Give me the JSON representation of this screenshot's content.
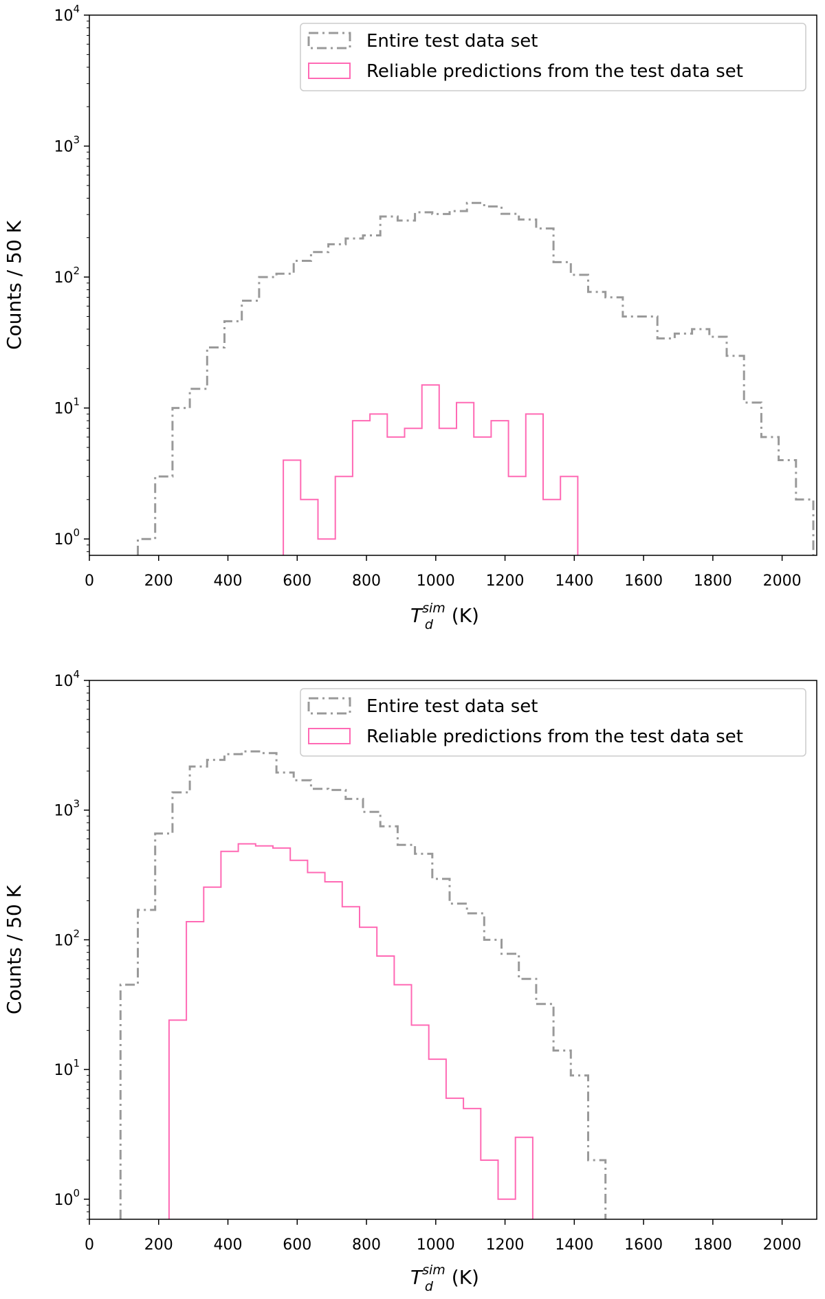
{
  "colors": {
    "entire": "#999999",
    "reliable": "#ff69b4",
    "axis": "#000000",
    "legend_border": "#cccccc"
  },
  "chart_data": [
    {
      "type": "histogram",
      "title": "",
      "xlabel": {
        "main": "T",
        "sub": "d",
        "sup": "sim",
        "unit": " (K)"
      },
      "ylabel": "Counts / 50 K",
      "xlim": [
        0,
        2100
      ],
      "ylim": [
        0.75,
        10000
      ],
      "yscale": "log",
      "xticks": [
        0,
        200,
        400,
        600,
        800,
        1000,
        1200,
        1400,
        1600,
        1800,
        2000
      ],
      "xtick_labels": [
        "0",
        "200",
        "400",
        "600",
        "800",
        "1000",
        "1200",
        "1400",
        "1600",
        "1800",
        "2000"
      ],
      "yticks": [
        {
          "value": 1,
          "base": "10",
          "exp": "0"
        },
        {
          "value": 10,
          "base": "10",
          "exp": "1"
        },
        {
          "value": 100,
          "base": "10",
          "exp": "2"
        },
        {
          "value": 1000,
          "base": "10",
          "exp": "3"
        },
        {
          "value": 10000,
          "base": "10",
          "exp": "4"
        }
      ],
      "legend": {
        "position": "top-right"
      },
      "series": [
        {
          "name": "Entire test data set",
          "style": "dashdot",
          "color": "#999999",
          "edges": [
            140,
            190,
            240,
            290,
            340,
            390,
            440,
            490,
            540,
            590,
            640,
            690,
            740,
            790,
            840,
            890,
            940,
            990,
            1040,
            1090,
            1140,
            1190,
            1240,
            1290,
            1340,
            1390,
            1440,
            1490,
            1540,
            1590,
            1640,
            1690,
            1740,
            1790,
            1840,
            1890,
            1940,
            1990,
            2040,
            2090
          ],
          "values": [
            1,
            3,
            10,
            14,
            29,
            46,
            66,
            100,
            106,
            133,
            155,
            178,
            197,
            208,
            290,
            270,
            312,
            303,
            319,
            368,
            346,
            304,
            275,
            235,
            130,
            104,
            77,
            70,
            50,
            50,
            34,
            37,
            40,
            35,
            25,
            11,
            6,
            4,
            2
          ]
        },
        {
          "name": "Reliable predictions from the test data set",
          "style": "solid",
          "color": "#ff69b4",
          "edges": [
            560,
            610,
            660,
            710,
            760,
            810,
            860,
            910,
            960,
            1010,
            1060,
            1110,
            1160,
            1210,
            1260,
            1310,
            1360,
            1410
          ],
          "values": [
            4,
            2,
            1,
            3,
            8,
            9,
            6,
            7,
            15,
            7,
            11,
            6,
            8,
            3,
            9,
            2,
            3
          ]
        }
      ]
    },
    {
      "type": "histogram",
      "title": "",
      "xlabel": {
        "main": "T",
        "sub": "d",
        "sup": "sim",
        "unit": " (K)"
      },
      "ylabel": "Counts / 50 K",
      "xlim": [
        0,
        2100
      ],
      "ylim": [
        0.7,
        10000
      ],
      "yscale": "log",
      "xticks": [
        0,
        200,
        400,
        600,
        800,
        1000,
        1200,
        1400,
        1600,
        1800,
        2000
      ],
      "xtick_labels": [
        "0",
        "200",
        "400",
        "600",
        "800",
        "1000",
        "1200",
        "1400",
        "1600",
        "1800",
        "2000"
      ],
      "yticks": [
        {
          "value": 1,
          "base": "10",
          "exp": "0"
        },
        {
          "value": 10,
          "base": "10",
          "exp": "1"
        },
        {
          "value": 100,
          "base": "10",
          "exp": "2"
        },
        {
          "value": 1000,
          "base": "10",
          "exp": "3"
        },
        {
          "value": 10000,
          "base": "10",
          "exp": "4"
        }
      ],
      "legend": {
        "position": "top-right"
      },
      "series": [
        {
          "name": "Entire test data set",
          "style": "dashdot",
          "color": "#999999",
          "edges": [
            90,
            140,
            190,
            240,
            290,
            340,
            390,
            440,
            490,
            540,
            590,
            640,
            690,
            740,
            790,
            840,
            890,
            940,
            990,
            1040,
            1090,
            1140,
            1190,
            1240,
            1290,
            1340,
            1390,
            1440,
            1490
          ],
          "values": [
            45,
            170,
            660,
            1370,
            2170,
            2440,
            2700,
            2840,
            2750,
            1950,
            1700,
            1460,
            1430,
            1220,
            970,
            750,
            540,
            460,
            295,
            190,
            160,
            100,
            78,
            50,
            32,
            14,
            9,
            2
          ]
        },
        {
          "name": "Reliable predictions from the test data set",
          "style": "solid",
          "color": "#ff69b4",
          "edges": [
            230,
            280,
            330,
            380,
            430,
            480,
            530,
            580,
            630,
            680,
            730,
            780,
            830,
            880,
            930,
            980,
            1030,
            1080,
            1130,
            1180,
            1230,
            1280
          ],
          "values": [
            24,
            138,
            255,
            480,
            550,
            530,
            510,
            410,
            330,
            280,
            180,
            125,
            75,
            45,
            22,
            12,
            6,
            5,
            2,
            1,
            3
          ]
        }
      ]
    }
  ]
}
